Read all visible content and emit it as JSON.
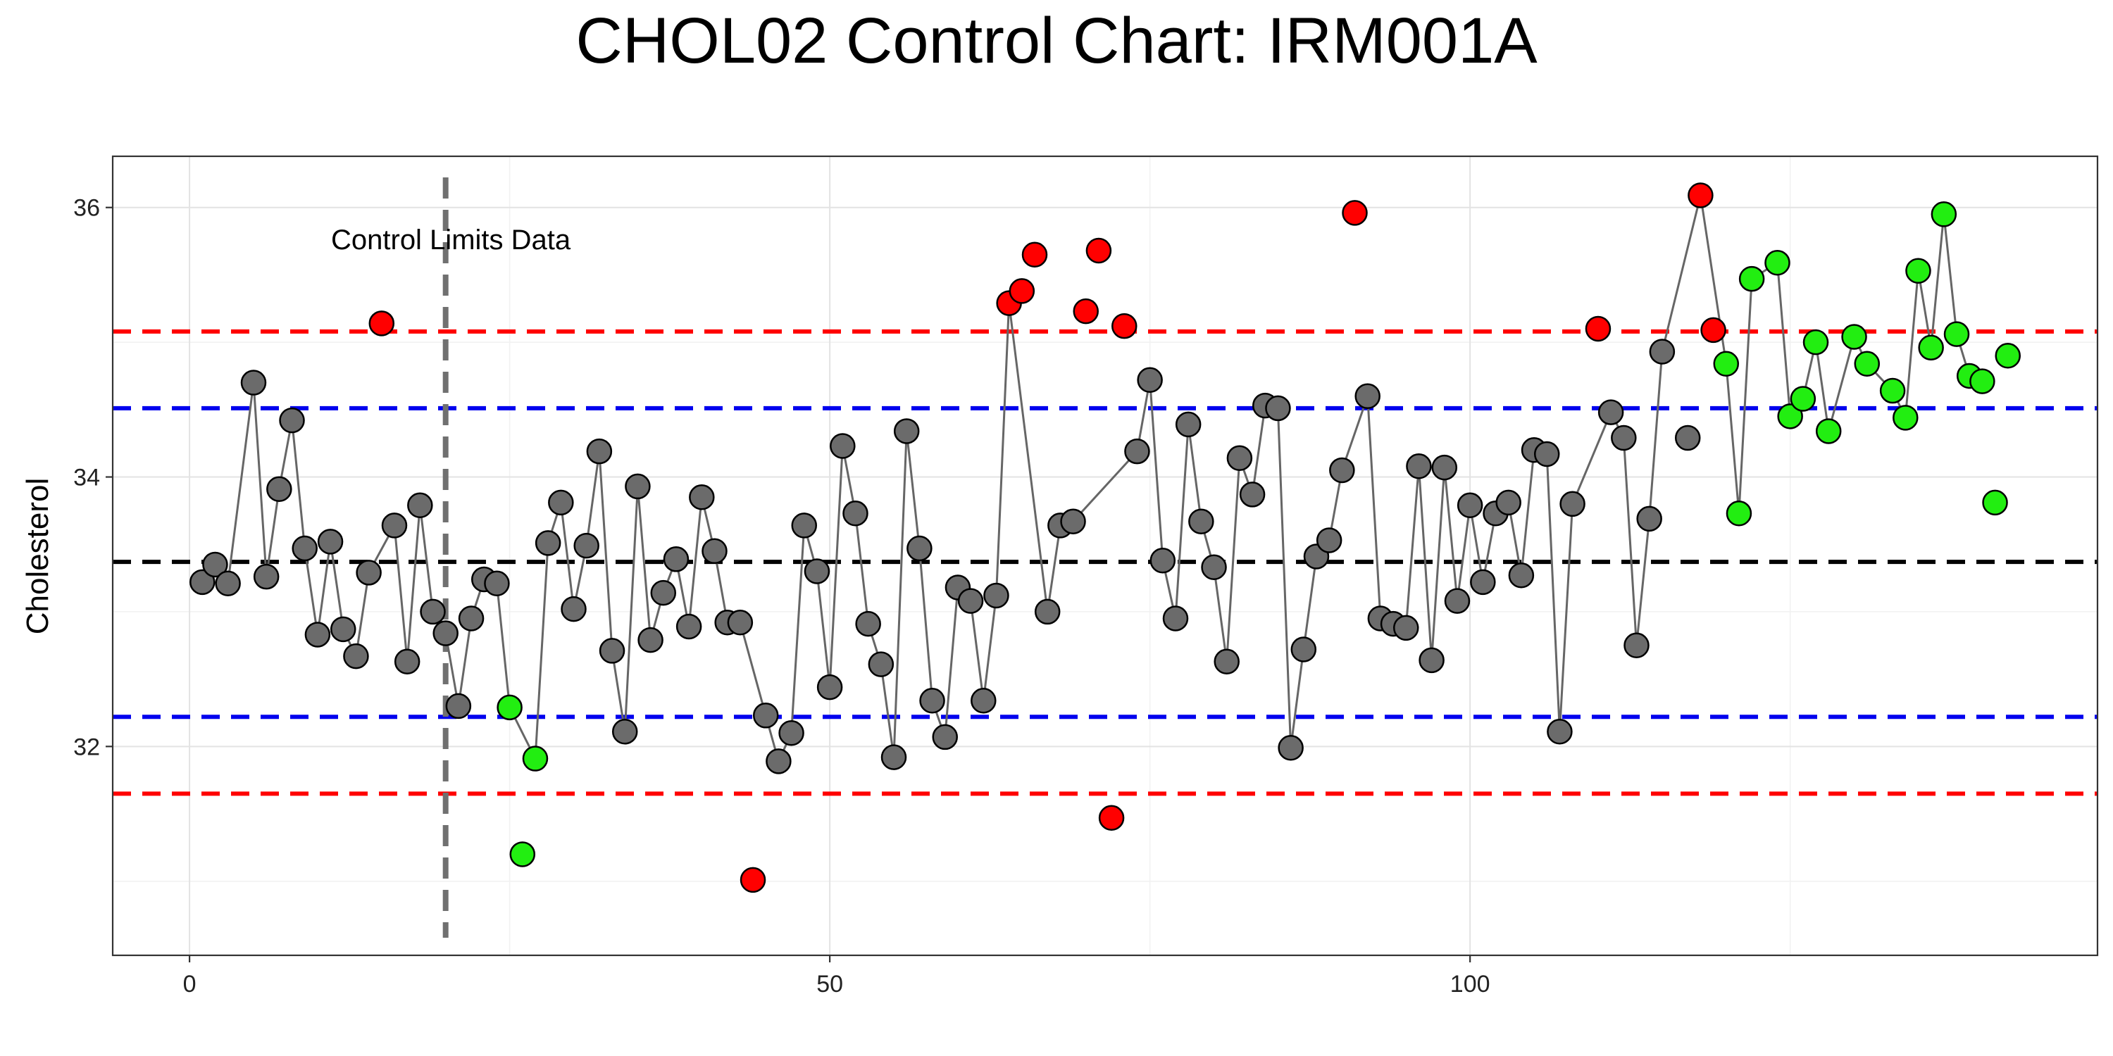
{
  "chart_data": {
    "type": "scatter",
    "title": "CHOL02  Control Chart:  IRM001A",
    "xlabel": "",
    "ylabel": "Cholesterol",
    "xlim": [
      -6,
      149
    ],
    "ylim": [
      30.45,
      36.38
    ],
    "x_ticks": [
      0,
      50,
      100
    ],
    "y_ticks": [
      32,
      34,
      36
    ],
    "grid": true,
    "legend": "none",
    "colors": {
      "in_control": "#6b6b6b",
      "out_of_limits": "#ff0000",
      "new_data": "#22ee11",
      "line": "#666666",
      "center": "#000000",
      "warning": "#0000ee",
      "control": "#ff0000",
      "divider": "#707070"
    },
    "reference_lines": [
      {
        "kind": "center",
        "value": 33.37
      },
      {
        "kind": "upper-warning",
        "value": 34.51
      },
      {
        "kind": "lower-warning",
        "value": 32.22
      },
      {
        "kind": "upper-control",
        "value": 35.08
      },
      {
        "kind": "lower-control",
        "value": 31.65
      }
    ],
    "divider_x": 20,
    "annotation": "Control Limits Data",
    "line_series_x": [
      1,
      2,
      3,
      5,
      6,
      7,
      8,
      9,
      10,
      11,
      12,
      13,
      14,
      16,
      17,
      18,
      19,
      20,
      21,
      22,
      23,
      24,
      25,
      27,
      28,
      29,
      30,
      31,
      32,
      33,
      34,
      35,
      36,
      37,
      38,
      39,
      40,
      41,
      42,
      43,
      45,
      46,
      47,
      48,
      49,
      50,
      51,
      52,
      53,
      54,
      55,
      56,
      57,
      58,
      59,
      60,
      61,
      62,
      63,
      64,
      67,
      68,
      69,
      74,
      75,
      76,
      77,
      78,
      79,
      80,
      81,
      82,
      83,
      84,
      85,
      86,
      87,
      88,
      89,
      90,
      92,
      93,
      94,
      95,
      96,
      97,
      98,
      99,
      100,
      101,
      102,
      103,
      104,
      105,
      106,
      107,
      108,
      109,
      111,
      112,
      113,
      114,
      115,
      118,
      120,
      121,
      122,
      124,
      125,
      126,
      127,
      128,
      130,
      131,
      132,
      133,
      134,
      135,
      136,
      137,
      138,
      139,
      140
    ],
    "points": [
      {
        "x": 1,
        "y": 33.22,
        "status": "in"
      },
      {
        "x": 2,
        "y": 33.35,
        "status": "in"
      },
      {
        "x": 3,
        "y": 33.21,
        "status": "in"
      },
      {
        "x": 5,
        "y": 34.7,
        "status": "in"
      },
      {
        "x": 6,
        "y": 33.26,
        "status": "in"
      },
      {
        "x": 7,
        "y": 33.91,
        "status": "in"
      },
      {
        "x": 8,
        "y": 34.42,
        "status": "in"
      },
      {
        "x": 9,
        "y": 33.47,
        "status": "in"
      },
      {
        "x": 10,
        "y": 32.83,
        "status": "in"
      },
      {
        "x": 11,
        "y": 33.52,
        "status": "in"
      },
      {
        "x": 12,
        "y": 32.87,
        "status": "in"
      },
      {
        "x": 13,
        "y": 32.67,
        "status": "in"
      },
      {
        "x": 14,
        "y": 33.29,
        "status": "in"
      },
      {
        "x": 15,
        "y": 35.14,
        "status": "out"
      },
      {
        "x": 16,
        "y": 33.64,
        "status": "in"
      },
      {
        "x": 17,
        "y": 32.63,
        "status": "in"
      },
      {
        "x": 18,
        "y": 33.79,
        "status": "in"
      },
      {
        "x": 19,
        "y": 33.0,
        "status": "in"
      },
      {
        "x": 20,
        "y": 32.84,
        "status": "in"
      },
      {
        "x": 21,
        "y": 32.3,
        "status": "in"
      },
      {
        "x": 22,
        "y": 32.95,
        "status": "in"
      },
      {
        "x": 23,
        "y": 33.24,
        "status": "in"
      },
      {
        "x": 24,
        "y": 33.21,
        "status": "in"
      },
      {
        "x": 25,
        "y": 32.29,
        "status": "new"
      },
      {
        "x": 26,
        "y": 31.2,
        "status": "new"
      },
      {
        "x": 27,
        "y": 31.91,
        "status": "new"
      },
      {
        "x": 28,
        "y": 33.51,
        "status": "in"
      },
      {
        "x": 29,
        "y": 33.81,
        "status": "in"
      },
      {
        "x": 30,
        "y": 33.02,
        "status": "in"
      },
      {
        "x": 31,
        "y": 33.49,
        "status": "in"
      },
      {
        "x": 32,
        "y": 34.19,
        "status": "in"
      },
      {
        "x": 33,
        "y": 32.71,
        "status": "in"
      },
      {
        "x": 34,
        "y": 32.11,
        "status": "in"
      },
      {
        "x": 35,
        "y": 33.93,
        "status": "in"
      },
      {
        "x": 36,
        "y": 32.79,
        "status": "in"
      },
      {
        "x": 37,
        "y": 33.14,
        "status": "in"
      },
      {
        "x": 38,
        "y": 33.39,
        "status": "in"
      },
      {
        "x": 39,
        "y": 32.89,
        "status": "in"
      },
      {
        "x": 40,
        "y": 33.85,
        "status": "in"
      },
      {
        "x": 41,
        "y": 33.45,
        "status": "in"
      },
      {
        "x": 42,
        "y": 32.92,
        "status": "in"
      },
      {
        "x": 43,
        "y": 32.92,
        "status": "in"
      },
      {
        "x": 44,
        "y": 31.01,
        "status": "out"
      },
      {
        "x": 45,
        "y": 32.23,
        "status": "in"
      },
      {
        "x": 46,
        "y": 31.89,
        "status": "in"
      },
      {
        "x": 47,
        "y": 32.1,
        "status": "in"
      },
      {
        "x": 48,
        "y": 33.64,
        "status": "in"
      },
      {
        "x": 49,
        "y": 33.3,
        "status": "in"
      },
      {
        "x": 50,
        "y": 32.44,
        "status": "in"
      },
      {
        "x": 51,
        "y": 34.23,
        "status": "in"
      },
      {
        "x": 52,
        "y": 33.73,
        "status": "in"
      },
      {
        "x": 53,
        "y": 32.91,
        "status": "in"
      },
      {
        "x": 54,
        "y": 32.61,
        "status": "in"
      },
      {
        "x": 55,
        "y": 31.92,
        "status": "in"
      },
      {
        "x": 56,
        "y": 34.34,
        "status": "in"
      },
      {
        "x": 57,
        "y": 33.47,
        "status": "in"
      },
      {
        "x": 58,
        "y": 32.34,
        "status": "in"
      },
      {
        "x": 59,
        "y": 32.07,
        "status": "in"
      },
      {
        "x": 60,
        "y": 33.18,
        "status": "in"
      },
      {
        "x": 61,
        "y": 33.08,
        "status": "in"
      },
      {
        "x": 62,
        "y": 32.34,
        "status": "in"
      },
      {
        "x": 63,
        "y": 33.12,
        "status": "in"
      },
      {
        "x": 64,
        "y": 35.29,
        "status": "out"
      },
      {
        "x": 65,
        "y": 35.38,
        "status": "out"
      },
      {
        "x": 66,
        "y": 35.65,
        "status": "out"
      },
      {
        "x": 67,
        "y": 33.0,
        "status": "in"
      },
      {
        "x": 68,
        "y": 33.64,
        "status": "in"
      },
      {
        "x": 69,
        "y": 33.67,
        "status": "in"
      },
      {
        "x": 70,
        "y": 35.23,
        "status": "out"
      },
      {
        "x": 71,
        "y": 35.68,
        "status": "out"
      },
      {
        "x": 72,
        "y": 31.47,
        "status": "out"
      },
      {
        "x": 73,
        "y": 35.12,
        "status": "out"
      },
      {
        "x": 74,
        "y": 34.19,
        "status": "in"
      },
      {
        "x": 75,
        "y": 34.72,
        "status": "in"
      },
      {
        "x": 76,
        "y": 33.38,
        "status": "in"
      },
      {
        "x": 77,
        "y": 32.95,
        "status": "in"
      },
      {
        "x": 78,
        "y": 34.39,
        "status": "in"
      },
      {
        "x": 79,
        "y": 33.67,
        "status": "in"
      },
      {
        "x": 80,
        "y": 33.33,
        "status": "in"
      },
      {
        "x": 81,
        "y": 32.63,
        "status": "in"
      },
      {
        "x": 82,
        "y": 34.14,
        "status": "in"
      },
      {
        "x": 83,
        "y": 33.87,
        "status": "in"
      },
      {
        "x": 84,
        "y": 34.53,
        "status": "in"
      },
      {
        "x": 85,
        "y": 34.51,
        "status": "in"
      },
      {
        "x": 86,
        "y": 31.99,
        "status": "in"
      },
      {
        "x": 87,
        "y": 32.72,
        "status": "in"
      },
      {
        "x": 88,
        "y": 33.41,
        "status": "in"
      },
      {
        "x": 89,
        "y": 33.53,
        "status": "in"
      },
      {
        "x": 90,
        "y": 34.05,
        "status": "in"
      },
      {
        "x": 91,
        "y": 35.96,
        "status": "out"
      },
      {
        "x": 92,
        "y": 34.6,
        "status": "in"
      },
      {
        "x": 93,
        "y": 32.95,
        "status": "in"
      },
      {
        "x": 94,
        "y": 32.91,
        "status": "in"
      },
      {
        "x": 95,
        "y": 32.88,
        "status": "in"
      },
      {
        "x": 96,
        "y": 34.08,
        "status": "in"
      },
      {
        "x": 97,
        "y": 32.64,
        "status": "in"
      },
      {
        "x": 98,
        "y": 34.07,
        "status": "in"
      },
      {
        "x": 99,
        "y": 33.08,
        "status": "in"
      },
      {
        "x": 100,
        "y": 33.79,
        "status": "in"
      },
      {
        "x": 101,
        "y": 33.22,
        "status": "in"
      },
      {
        "x": 102,
        "y": 33.73,
        "status": "in"
      },
      {
        "x": 103,
        "y": 33.81,
        "status": "in"
      },
      {
        "x": 104,
        "y": 33.27,
        "status": "in"
      },
      {
        "x": 105,
        "y": 34.2,
        "status": "in"
      },
      {
        "x": 106,
        "y": 34.17,
        "status": "in"
      },
      {
        "x": 107,
        "y": 32.11,
        "status": "in"
      },
      {
        "x": 108,
        "y": 33.8,
        "status": "in"
      },
      {
        "x": 110,
        "y": 35.1,
        "status": "out"
      },
      {
        "x": 111,
        "y": 34.48,
        "status": "in"
      },
      {
        "x": 112,
        "y": 34.29,
        "status": "in"
      },
      {
        "x": 113,
        "y": 32.75,
        "status": "in"
      },
      {
        "x": 114,
        "y": 33.69,
        "status": "in"
      },
      {
        "x": 115,
        "y": 34.93,
        "status": "in"
      },
      {
        "x": 117,
        "y": 34.29,
        "status": "in"
      },
      {
        "x": 118,
        "y": 36.09,
        "status": "out"
      },
      {
        "x": 119,
        "y": 35.09,
        "status": "out"
      },
      {
        "x": 120,
        "y": 34.84,
        "status": "new"
      },
      {
        "x": 121,
        "y": 33.73,
        "status": "new"
      },
      {
        "x": 122,
        "y": 35.47,
        "status": "new"
      },
      {
        "x": 124,
        "y": 35.59,
        "status": "new"
      },
      {
        "x": 125,
        "y": 34.45,
        "status": "new"
      },
      {
        "x": 126,
        "y": 34.58,
        "status": "new"
      },
      {
        "x": 127,
        "y": 35.0,
        "status": "new"
      },
      {
        "x": 128,
        "y": 34.34,
        "status": "new"
      },
      {
        "x": 130,
        "y": 35.04,
        "status": "new"
      },
      {
        "x": 131,
        "y": 34.84,
        "status": "new"
      },
      {
        "x": 133,
        "y": 34.64,
        "status": "new"
      },
      {
        "x": 134,
        "y": 34.44,
        "status": "new"
      },
      {
        "x": 135,
        "y": 35.53,
        "status": "new"
      },
      {
        "x": 136,
        "y": 34.96,
        "status": "new"
      },
      {
        "x": 137,
        "y": 35.95,
        "status": "new"
      },
      {
        "x": 138,
        "y": 35.06,
        "status": "new"
      },
      {
        "x": 139,
        "y": 34.75,
        "status": "new"
      },
      {
        "x": 140,
        "y": 34.71,
        "status": "new"
      },
      {
        "x": 141,
        "y": 33.81,
        "status": "new"
      },
      {
        "x": 142,
        "y": 34.9,
        "status": "new"
      }
    ]
  }
}
